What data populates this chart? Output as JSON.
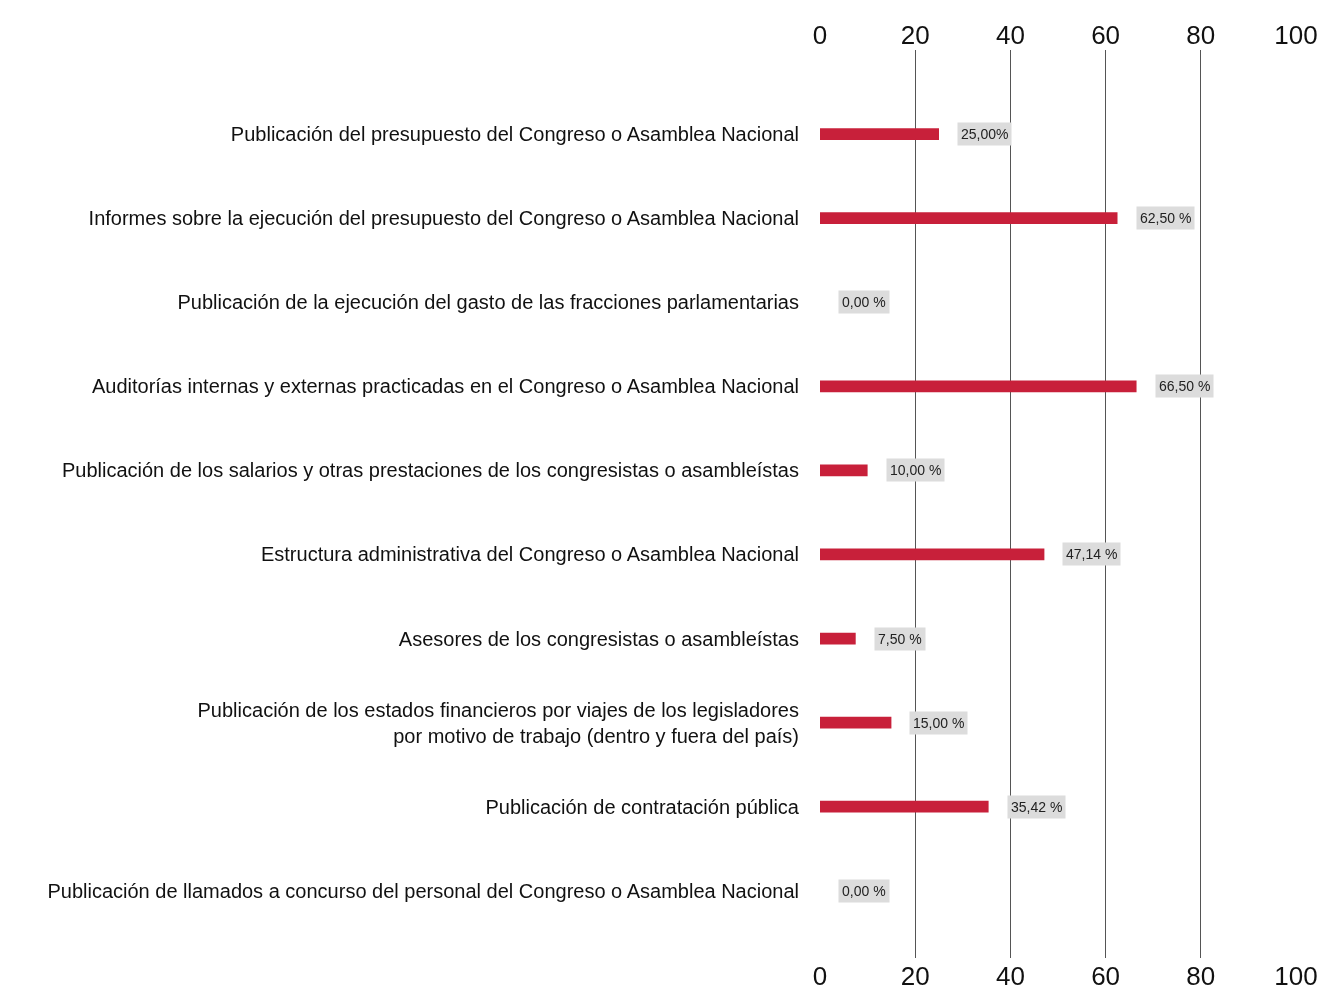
{
  "chart_data": {
    "type": "bar",
    "orientation": "horizontal",
    "categories": [
      "Publicación del presupuesto del Congreso o Asamblea Nacional",
      "Informes sobre la ejecución del presupuesto del Congreso o Asamblea Nacional",
      "Publicación de la ejecución del gasto de las fracciones parlamentarias",
      "Auditorías internas y externas practicadas en el Congreso o Asamblea Nacional",
      "Publicación de los salarios y otras prestaciones de los congresistas o asambleístas",
      "Estructura administrativa del Congreso o Asamblea Nacional",
      "Asesores de los congresistas o asambleístas",
      "Publicación de los estados financieros por viajes de los legisladores\npor motivo de trabajo (dentro y fuera del país)",
      "Publicación de contratación pública",
      "Publicación de llamados a concurso del personal del Congreso o Asamblea Nacional"
    ],
    "values": [
      25,
      62.5,
      0,
      66.5,
      10,
      47.14,
      7.5,
      15,
      35.42,
      0
    ],
    "value_labels": [
      "25,00%",
      "62,50 %",
      "0,00 %",
      "66,50 %",
      "10,00 %",
      "47,14 %",
      "7,50 %",
      "15,00 %",
      "35,42 %",
      "0,00 %"
    ],
    "color": "#c8203a",
    "xlim": [
      0,
      100
    ],
    "xticks": [
      0,
      20,
      40,
      60,
      80,
      100
    ],
    "x2lim": [
      0,
      100
    ],
    "x2ticks": [
      0,
      20,
      40,
      60,
      80,
      100
    ],
    "grid": "x"
  }
}
